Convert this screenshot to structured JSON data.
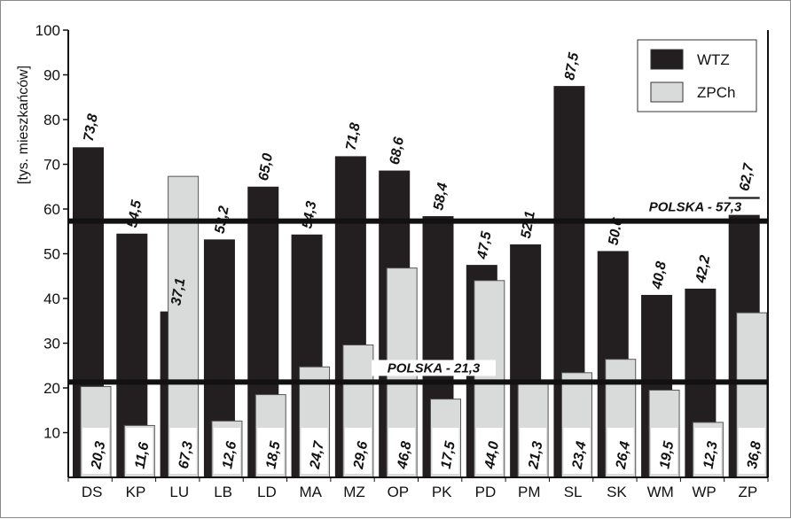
{
  "chart_data": {
    "type": "bar",
    "ylabel": "[tys. mieszkańców]",
    "ylim": [
      0,
      100
    ],
    "yticks": [
      10,
      20,
      30,
      40,
      50,
      60,
      70,
      80,
      90,
      100
    ],
    "grid": false,
    "legend_position": "top-right",
    "categories": [
      "DS",
      "KP",
      "LU",
      "LB",
      "LD",
      "MA",
      "MZ",
      "OP",
      "PK",
      "PD",
      "PM",
      "SL",
      "SK",
      "WM",
      "WP",
      "ZP"
    ],
    "series": [
      {
        "name": "WTZ",
        "color": "#231f20",
        "values": [
          73.8,
          54.5,
          37.1,
          53.2,
          65.0,
          54.3,
          71.8,
          68.6,
          58.4,
          47.5,
          52.1,
          87.5,
          50.6,
          40.8,
          42.2,
          62.7
        ],
        "labels": [
          "73,8",
          "54,5",
          "37,1",
          "53,2",
          "65,0",
          "54,3",
          "71,8",
          "68,6",
          "58,4",
          "47,5",
          "52,1",
          "87,5",
          "50.6",
          "40,8",
          "42,2",
          "62,7"
        ]
      },
      {
        "name": "ZPCh",
        "color": "#d9dbdb",
        "values": [
          20.3,
          11.6,
          67.3,
          12.6,
          18.5,
          24.7,
          29.6,
          46.8,
          17.5,
          44.0,
          21.3,
          23.4,
          26.4,
          19.5,
          12.3,
          36.8
        ],
        "labels": [
          "20,3",
          "11,6",
          "67,3",
          "12,6",
          "18,5",
          "24,7",
          "29,6",
          "46,8",
          "17,5",
          "44,0",
          "21,3",
          "23,4",
          "26,4",
          "19,5",
          "12,3",
          "36,8"
        ]
      }
    ],
    "reference_lines": [
      {
        "value": 57.3,
        "label": "POLSKA - 57,3"
      },
      {
        "value": 21.3,
        "label": "POLSKA - 21,3"
      }
    ]
  }
}
